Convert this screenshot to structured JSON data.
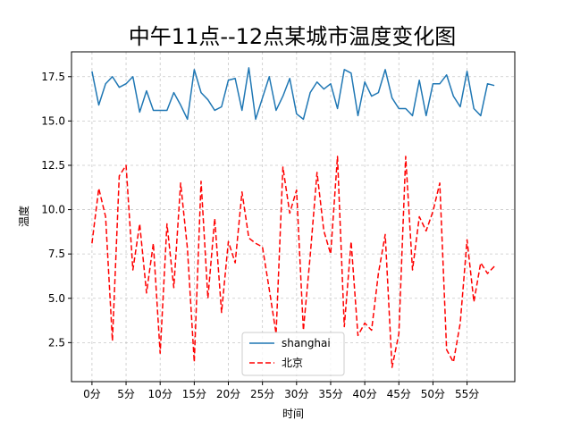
{
  "chart_data": {
    "type": "line",
    "title": "中午11点--12点某城市温度变化图",
    "xlabel": "时间",
    "ylabel": "温度",
    "grid": true,
    "legend_position": "bottom-center",
    "x": [
      0,
      1,
      2,
      3,
      4,
      5,
      6,
      7,
      8,
      9,
      10,
      11,
      12,
      13,
      14,
      15,
      16,
      17,
      18,
      19,
      20,
      21,
      22,
      23,
      24,
      25,
      26,
      27,
      28,
      29,
      30,
      31,
      32,
      33,
      34,
      35,
      36,
      37,
      38,
      39,
      40,
      41,
      42,
      43,
      44,
      45,
      46,
      47,
      48,
      49,
      50,
      51,
      52,
      53,
      54,
      55,
      56,
      57,
      58,
      59
    ],
    "xlim": [
      -3,
      62
    ],
    "ylim": [
      0.3,
      18.9
    ],
    "x_ticks": [
      0,
      5,
      10,
      15,
      20,
      25,
      30,
      35,
      40,
      45,
      50,
      55
    ],
    "x_tick_labels": [
      "0分",
      "5分",
      "10分",
      "15分",
      "20分",
      "25分",
      "30分",
      "35分",
      "40分",
      "45分",
      "50分",
      "55分"
    ],
    "y_ticks": [
      2.5,
      5.0,
      7.5,
      10.0,
      12.5,
      15.0,
      17.5
    ],
    "y_tick_labels": [
      "2.5",
      "5.0",
      "7.5",
      "10.0",
      "12.5",
      "15.0",
      "17.5"
    ],
    "series": [
      {
        "name": "shanghai",
        "color": "#1f77b4",
        "style": "solid",
        "values": [
          17.8,
          15.9,
          17.1,
          17.5,
          16.9,
          17.1,
          17.5,
          15.5,
          16.7,
          15.6,
          15.6,
          15.6,
          16.6,
          15.9,
          15.1,
          17.9,
          16.6,
          16.2,
          15.6,
          15.8,
          17.3,
          17.4,
          15.6,
          18.0,
          15.1,
          16.3,
          17.5,
          15.6,
          16.4,
          17.4,
          15.4,
          15.1,
          16.6,
          17.2,
          16.8,
          17.1,
          15.7,
          17.9,
          17.7,
          15.3,
          17.2,
          16.4,
          16.6,
          17.9,
          16.3,
          15.7,
          15.7,
          15.3,
          17.3,
          15.3,
          17.1,
          17.1,
          17.6,
          16.4,
          15.8,
          17.8,
          15.7,
          15.3,
          17.1,
          17.0
        ]
      },
      {
        "name": "北京",
        "color": "#ff0000",
        "style": "dashed",
        "values": [
          8.1,
          11.2,
          9.6,
          2.6,
          11.9,
          12.5,
          6.6,
          9.2,
          5.3,
          8.1,
          1.9,
          9.2,
          5.6,
          11.5,
          7.8,
          1.4,
          11.6,
          5.0,
          9.5,
          4.2,
          8.2,
          7.0,
          11.0,
          8.4,
          8.1,
          7.9,
          5.5,
          3.0,
          12.4,
          9.8,
          11.1,
          3.2,
          7.4,
          12.1,
          8.8,
          7.5,
          13.0,
          3.4,
          8.2,
          2.9,
          3.6,
          3.2,
          6.4,
          8.6,
          1.1,
          3.0,
          13.0,
          6.6,
          9.6,
          8.8,
          9.9,
          11.5,
          2.1,
          1.4,
          3.6,
          8.3,
          4.8,
          7.0,
          6.4,
          6.8
        ]
      }
    ]
  }
}
